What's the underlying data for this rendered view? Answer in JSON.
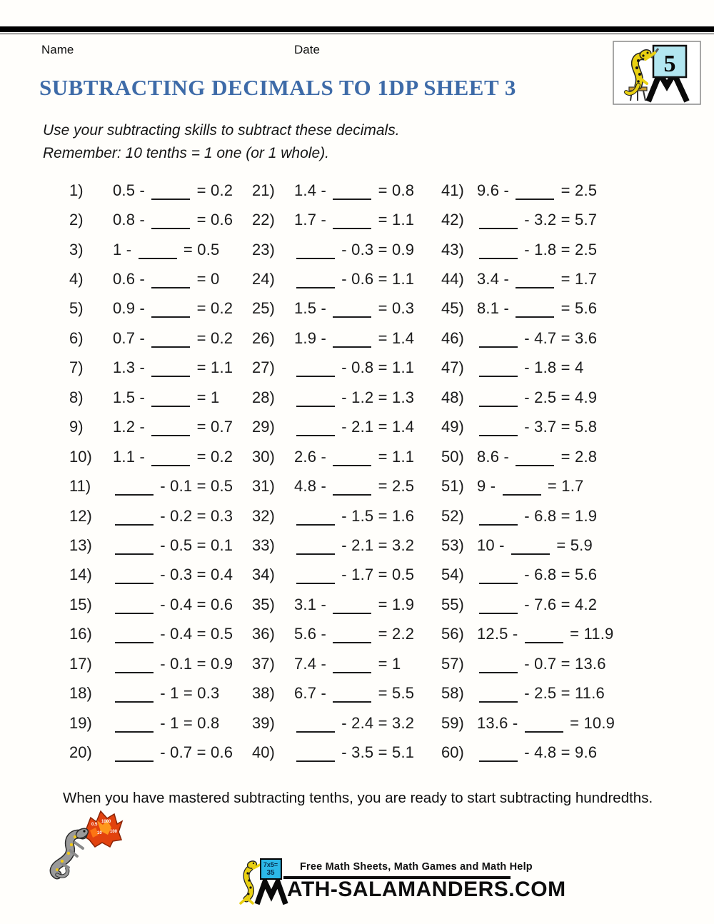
{
  "header": {
    "name_label": "Name",
    "date_label": "Date",
    "badge_number": "5"
  },
  "title": "SUBTRACTING DECIMALS TO 1DP SHEET 3",
  "instructions": {
    "line1": "Use your subtracting skills to subtract these decimals.",
    "line2": "Remember: 10 tenths = 1 one (or 1 whole)."
  },
  "problems": {
    "columns": [
      {
        "items": [
          {
            "n": "1)",
            "expr": "0.5 - ____ = 0.2"
          },
          {
            "n": "2)",
            "expr": "0.8 - ____ = 0.6"
          },
          {
            "n": "3)",
            "expr": "1 - ____ = 0.5"
          },
          {
            "n": "4)",
            "expr": "0.6 - ____ = 0"
          },
          {
            "n": "5)",
            "expr": "0.9 - ____ = 0.2"
          },
          {
            "n": "6)",
            "expr": "0.7 - ____ = 0.2"
          },
          {
            "n": "7)",
            "expr": "1.3 - ____ = 1.1"
          },
          {
            "n": "8)",
            "expr": "1.5 - ____ = 1"
          },
          {
            "n": "9)",
            "expr": "1.2 - ____ = 0.7"
          },
          {
            "n": "10)",
            "expr": "1.1 - ____ = 0.2"
          },
          {
            "n": "11)",
            "expr": "____ - 0.1 = 0.5"
          },
          {
            "n": "12)",
            "expr": "____ - 0.2 = 0.3"
          },
          {
            "n": "13)",
            "expr": "____ - 0.5 = 0.1"
          },
          {
            "n": "14)",
            "expr": "____ - 0.3 = 0.4"
          },
          {
            "n": "15)",
            "expr": "____ - 0.4 = 0.6"
          },
          {
            "n": "16)",
            "expr": "____ - 0.4 = 0.5"
          },
          {
            "n": "17)",
            "expr": "____ - 0.1 = 0.9"
          },
          {
            "n": "18)",
            "expr": "____ - 1 = 0.3"
          },
          {
            "n": "19)",
            "expr": "____ - 1 = 0.8"
          },
          {
            "n": "20)",
            "expr": "____ - 0.7 = 0.6"
          }
        ]
      },
      {
        "items": [
          {
            "n": "21)",
            "expr": "1.4 - ____ = 0.8"
          },
          {
            "n": "22)",
            "expr": "1.7 - ____ = 1.1"
          },
          {
            "n": "23)",
            "expr": "____ - 0.3 = 0.9"
          },
          {
            "n": "24)",
            "expr": "____ - 0.6 = 1.1"
          },
          {
            "n": "25)",
            "expr": "1.5 - ____ = 0.3"
          },
          {
            "n": "26)",
            "expr": "1.9 - ____ = 1.4"
          },
          {
            "n": "27)",
            "expr": "____ - 0.8 = 1.1"
          },
          {
            "n": "28)",
            "expr": "____ - 1.2 = 1.3"
          },
          {
            "n": "29)",
            "expr": "____ - 2.1 = 1.4"
          },
          {
            "n": "30)",
            "expr": "2.6 - ____ = 1.1"
          },
          {
            "n": "31)",
            "expr": "4.8 - ____ = 2.5"
          },
          {
            "n": "32)",
            "expr": "____ - 1.5 = 1.6"
          },
          {
            "n": "33)",
            "expr": "____ - 2.1 = 3.2"
          },
          {
            "n": "34)",
            "expr": "____ - 1.7 = 0.5"
          },
          {
            "n": "35)",
            "expr": "3.1 - ____ = 1.9"
          },
          {
            "n": "36)",
            "expr": "5.6 - ____ = 2.2"
          },
          {
            "n": "37)",
            "expr": "7.4 - ____ = 1"
          },
          {
            "n": "38)",
            "expr": "6.7 - ____ = 5.5"
          },
          {
            "n": "39)",
            "expr": "____ - 2.4 = 3.2"
          },
          {
            "n": "40)",
            "expr": "____ - 3.5 = 5.1"
          }
        ]
      },
      {
        "items": [
          {
            "n": "41)",
            "expr": "9.6 - ____ = 2.5"
          },
          {
            "n": "42)",
            "expr": "____ - 3.2 = 5.7"
          },
          {
            "n": "43)",
            "expr": "____ - 1.8 = 2.5"
          },
          {
            "n": "44)",
            "expr": "3.4 - ____ = 1.7"
          },
          {
            "n": "45)",
            "expr": "8.1 - ____ = 5.6"
          },
          {
            "n": "46)",
            "expr": "____ - 4.7 = 3.6"
          },
          {
            "n": "47)",
            "expr": "____ - 1.8 = 4"
          },
          {
            "n": "48)",
            "expr": "____ - 2.5 = 4.9"
          },
          {
            "n": "49)",
            "expr": "____ - 3.7 = 5.8"
          },
          {
            "n": "50)",
            "expr": "8.6 - ____ = 2.8"
          },
          {
            "n": "51)",
            "expr": "9 - ____ = 1.7"
          },
          {
            "n": "52)",
            "expr": "____ - 6.8 = 1.9"
          },
          {
            "n": "53)",
            "expr": "10 - ____ = 5.9"
          },
          {
            "n": "54)",
            "expr": "____ - 6.8 = 5.6"
          },
          {
            "n": "55)",
            "expr": "____ - 7.6 = 4.2"
          },
          {
            "n": "56)",
            "expr": "12.5 - ____ = 11.9"
          },
          {
            "n": "57)",
            "expr": "____ - 0.7 = 13.6"
          },
          {
            "n": "58)",
            "expr": "____ - 2.5 = 11.6"
          },
          {
            "n": "59)",
            "expr": "13.6 - ____ = 10.9"
          },
          {
            "n": "60)",
            "expr": "____ - 4.8 = 9.6"
          }
        ]
      }
    ]
  },
  "footer": {
    "note": "When you have mastered subtracting tenths, you are ready to start subtracting hundredths."
  },
  "branding": {
    "board_line1": "7x5=",
    "board_line2": "35",
    "tagline": "Free Math Sheets, Math Games and Math Help",
    "site_rest": "ATH-SALAMANDERS.COM",
    "flame_numbers": [
      "0.5",
      "1000",
      "10",
      "100"
    ]
  },
  "colors": {
    "title_blue": "#3e6ba8",
    "ink": "#1b1b1b",
    "card_cyan": "#b2e6f0",
    "board_cyan": "#2cb8e8",
    "salamander_yellow": "#e9d011",
    "flame_orange": "#e2420e"
  }
}
